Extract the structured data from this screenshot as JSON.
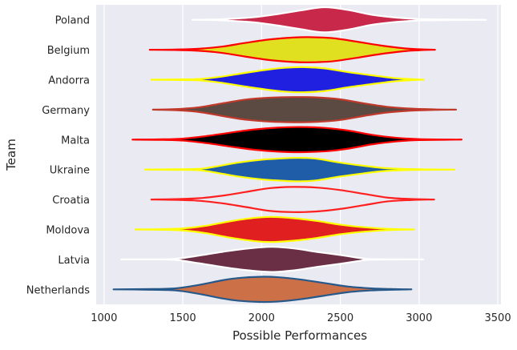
{
  "chart_data": {
    "type": "violin",
    "orientation": "horizontal",
    "title": "",
    "xlabel": "Possible Performances",
    "ylabel": "Team",
    "xlim": [
      950,
      3520
    ],
    "xticks": [
      1000,
      1500,
      2000,
      2500,
      3000,
      3500
    ],
    "xtick_labels": [
      "1000",
      "1500",
      "2000",
      "2500",
      "3000",
      "3500"
    ],
    "grid": true,
    "background": "#EAEAF2",
    "categories": [
      "Poland",
      "Belgium",
      "Andorra",
      "Germany",
      "Malta",
      "Ukraine",
      "Croatia",
      "Moldova",
      "Latvia",
      "Netherlands"
    ],
    "series": [
      {
        "team": "Poland",
        "min": 1560,
        "max": 3400,
        "mode": 2400,
        "fill": "#C8284A",
        "edge": "#FFFFFF",
        "profile": [
          [
            1560,
            0.0
          ],
          [
            1700,
            0.02
          ],
          [
            1800,
            0.08
          ],
          [
            1950,
            0.2
          ],
          [
            2100,
            0.45
          ],
          [
            2250,
            0.75
          ],
          [
            2400,
            1.0
          ],
          [
            2550,
            0.78
          ],
          [
            2700,
            0.4
          ],
          [
            2850,
            0.18
          ],
          [
            3000,
            0.06
          ],
          [
            3200,
            0.02
          ],
          [
            3400,
            0.0
          ]
        ]
      },
      {
        "team": "Belgium",
        "min": 1290,
        "max": 3090,
        "mode": 2300,
        "fill": "#E0E020",
        "edge": "#FF0000",
        "profile": [
          [
            1290,
            0.0
          ],
          [
            1450,
            0.02
          ],
          [
            1600,
            0.08
          ],
          [
            1750,
            0.25
          ],
          [
            1900,
            0.55
          ],
          [
            2050,
            0.82
          ],
          [
            2200,
            0.97
          ],
          [
            2300,
            1.0
          ],
          [
            2450,
            0.92
          ],
          [
            2600,
            0.65
          ],
          [
            2750,
            0.35
          ],
          [
            2900,
            0.12
          ],
          [
            3000,
            0.04
          ],
          [
            3090,
            0.0
          ]
        ]
      },
      {
        "team": "Andorra",
        "min": 1300,
        "max": 3020,
        "mode": 2260,
        "fill": "#2020E0",
        "edge": "#FFFF00",
        "profile": [
          [
            1300,
            0.0
          ],
          [
            1450,
            0.02
          ],
          [
            1600,
            0.05
          ],
          [
            1750,
            0.25
          ],
          [
            1900,
            0.55
          ],
          [
            2050,
            0.82
          ],
          [
            2150,
            0.95
          ],
          [
            2260,
            1.0
          ],
          [
            2400,
            0.9
          ],
          [
            2550,
            0.6
          ],
          [
            2700,
            0.35
          ],
          [
            2850,
            0.12
          ],
          [
            2950,
            0.04
          ],
          [
            3020,
            0.0
          ]
        ]
      },
      {
        "team": "Germany",
        "min": 1310,
        "max": 3220,
        "mode": 2200,
        "fill": "#5A4A42",
        "edge": "#C0392B",
        "profile": [
          [
            1310,
            0.0
          ],
          [
            1450,
            0.04
          ],
          [
            1600,
            0.18
          ],
          [
            1750,
            0.5
          ],
          [
            1900,
            0.8
          ],
          [
            2050,
            0.95
          ],
          [
            2200,
            1.0
          ],
          [
            2350,
            0.97
          ],
          [
            2500,
            0.82
          ],
          [
            2650,
            0.5
          ],
          [
            2800,
            0.22
          ],
          [
            2950,
            0.08
          ],
          [
            3100,
            0.02
          ],
          [
            3220,
            0.0
          ]
        ]
      },
      {
        "team": "Malta",
        "min": 1180,
        "max": 3240,
        "mode": 2250,
        "fill": "#000000",
        "edge": "#FF0000",
        "profile": [
          [
            1180,
            0.0
          ],
          [
            1350,
            0.02
          ],
          [
            1500,
            0.08
          ],
          [
            1650,
            0.28
          ],
          [
            1800,
            0.55
          ],
          [
            1950,
            0.8
          ],
          [
            2100,
            0.95
          ],
          [
            2250,
            1.0
          ],
          [
            2400,
            0.93
          ],
          [
            2550,
            0.72
          ],
          [
            2700,
            0.38
          ],
          [
            2850,
            0.15
          ],
          [
            3000,
            0.04
          ],
          [
            3240,
            0.0
          ]
        ]
      },
      {
        "team": "Ukraine",
        "min": 1260,
        "max": 3200,
        "mode": 2250,
        "fill": "#1F5DA8",
        "edge": "#FFFF00",
        "profile": [
          [
            1260,
            0.0
          ],
          [
            1450,
            0.02
          ],
          [
            1600,
            0.05
          ],
          [
            1700,
            0.22
          ],
          [
            1850,
            0.55
          ],
          [
            2000,
            0.78
          ],
          [
            2150,
            0.9
          ],
          [
            2250,
            0.93
          ],
          [
            2350,
            0.86
          ],
          [
            2500,
            0.55
          ],
          [
            2650,
            0.3
          ],
          [
            2800,
            0.1
          ],
          [
            3000,
            0.02
          ],
          [
            3200,
            0.0
          ]
        ]
      },
      {
        "team": "Croatia",
        "min": 1300,
        "max": 3080,
        "mode": 2200,
        "fill": "#EAEAF2",
        "edge": "#FF2020",
        "profile": [
          [
            1300,
            0.0
          ],
          [
            1450,
            0.03
          ],
          [
            1600,
            0.1
          ],
          [
            1750,
            0.3
          ],
          [
            1900,
            0.6
          ],
          [
            2050,
            0.9
          ],
          [
            2200,
            1.0
          ],
          [
            2350,
            0.95
          ],
          [
            2500,
            0.75
          ],
          [
            2650,
            0.45
          ],
          [
            2800,
            0.15
          ],
          [
            2950,
            0.04
          ],
          [
            3080,
            0.0
          ]
        ]
      },
      {
        "team": "Moldova",
        "min": 1200,
        "max": 2950,
        "mode": 2060,
        "fill": "#E02020",
        "edge": "#FFFF00",
        "profile": [
          [
            1200,
            0.0
          ],
          [
            1350,
            0.02
          ],
          [
            1500,
            0.08
          ],
          [
            1650,
            0.3
          ],
          [
            1800,
            0.65
          ],
          [
            1950,
            0.92
          ],
          [
            2060,
            1.0
          ],
          [
            2200,
            0.9
          ],
          [
            2350,
            0.68
          ],
          [
            2500,
            0.38
          ],
          [
            2650,
            0.18
          ],
          [
            2800,
            0.05
          ],
          [
            2950,
            0.0
          ]
        ]
      },
      {
        "team": "Latvia",
        "min": 1110,
        "max": 2990,
        "mode": 2060,
        "fill": "#6B2F45",
        "edge": "#FFFFFF",
        "profile": [
          [
            1110,
            0.0
          ],
          [
            1300,
            0.0
          ],
          [
            1450,
            0.04
          ],
          [
            1600,
            0.3
          ],
          [
            1750,
            0.6
          ],
          [
            1900,
            0.85
          ],
          [
            2060,
            1.0
          ],
          [
            2200,
            0.88
          ],
          [
            2350,
            0.6
          ],
          [
            2500,
            0.35
          ],
          [
            2620,
            0.12
          ],
          [
            2700,
            0.02
          ],
          [
            2990,
            0.0
          ]
        ]
      },
      {
        "team": "Netherlands",
        "min": 1060,
        "max": 2940,
        "mode": 1990,
        "fill": "#CC7048",
        "edge": "#27588A",
        "profile": [
          [
            1060,
            0.0
          ],
          [
            1250,
            0.02
          ],
          [
            1450,
            0.08
          ],
          [
            1600,
            0.35
          ],
          [
            1750,
            0.72
          ],
          [
            1850,
            0.9
          ],
          [
            1990,
            1.0
          ],
          [
            2100,
            0.97
          ],
          [
            2250,
            0.78
          ],
          [
            2400,
            0.5
          ],
          [
            2550,
            0.22
          ],
          [
            2700,
            0.08
          ],
          [
            2850,
            0.02
          ],
          [
            2940,
            0.0
          ]
        ]
      }
    ]
  }
}
